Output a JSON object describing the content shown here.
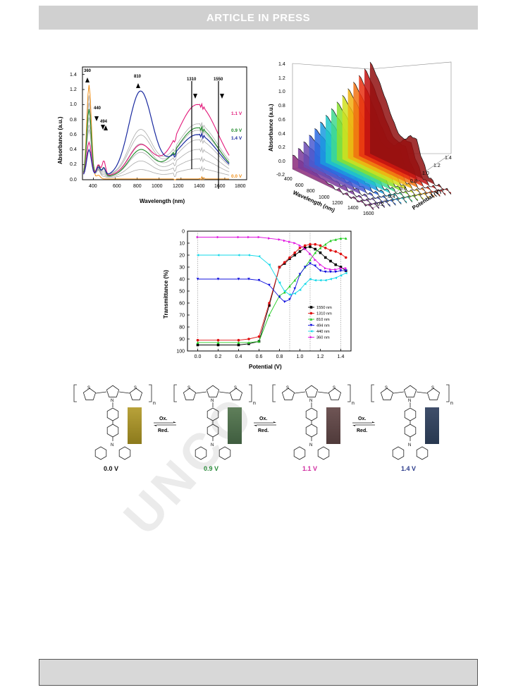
{
  "header": {
    "banner": "ARTICLE  IN  PRESS"
  },
  "watermark": "UNCO",
  "figure_a": {
    "xlabel": "Wavelength (nm)",
    "ylabel": "Absorbance (a.u.)",
    "xticks": [
      "400",
      "600",
      "800",
      "1000",
      "1200",
      "1400",
      "1600",
      "1800"
    ],
    "yticks": [
      "0.0",
      "0.2",
      "0.4",
      "0.6",
      "0.8",
      "1.0",
      "1.2",
      "1.4"
    ],
    "peak_labels": [
      "360",
      "440",
      "494",
      "810",
      "1310",
      "1550"
    ],
    "curve_labels": [
      {
        "text": "1.1 V",
        "color": "#e2197a"
      },
      {
        "text": "0.9 V",
        "color": "#1f8a2a"
      },
      {
        "text": "1.4 V",
        "color": "#1a2aa0"
      },
      {
        "text": "0.0 V",
        "color": "#f0901a"
      }
    ]
  },
  "figure_b": {
    "zlabel": "Absorbance (a.u.)",
    "xlabel": "Wavelength (nm)",
    "ylabel": "Potential (V)",
    "zticks": [
      "-0.2",
      "0.0",
      "0.2",
      "0.4",
      "0.6",
      "0.8",
      "1.0",
      "1.2",
      "1.4"
    ],
    "xticks": [
      "400",
      "600",
      "800",
      "1000",
      "1200",
      "1400",
      "1600"
    ],
    "yticks": [
      "0.2",
      "0.4",
      "0.6",
      "0.8",
      "1.0",
      "1.2",
      "1.4"
    ]
  },
  "chart_data": {
    "type": "line",
    "xlabel": "Potential (V)",
    "ylabel": "Transmittance (%)",
    "xlim": [
      -0.1,
      1.5
    ],
    "ylim": [
      100,
      0
    ],
    "xticks": [
      "0.0",
      "0.2",
      "0.4",
      "0.6",
      "0.8",
      "1.0",
      "1.2",
      "1.4"
    ],
    "yticks": [
      "0",
      "10",
      "20",
      "30",
      "40",
      "50",
      "60",
      "70",
      "80",
      "90",
      "100"
    ],
    "legend_position": "right",
    "reference_lines": [
      0.0,
      0.9,
      1.1,
      1.4
    ],
    "x": [
      0.0,
      0.2,
      0.4,
      0.5,
      0.6,
      0.7,
      0.8,
      0.85,
      0.9,
      0.95,
      1.0,
      1.05,
      1.1,
      1.15,
      1.2,
      1.25,
      1.3,
      1.35,
      1.4,
      1.45
    ],
    "series": [
      {
        "name": "1550 nm",
        "color": "#000000",
        "marker": "square",
        "values": [
          95,
          95,
          95,
          94,
          92,
          62,
          30,
          27,
          23,
          20,
          17,
          14,
          13,
          15,
          18,
          22,
          25,
          28,
          30,
          33
        ]
      },
      {
        "name": "1310 nm",
        "color": "#e01010",
        "marker": "circle",
        "values": [
          91,
          91,
          91,
          90,
          88,
          60,
          30,
          26,
          22,
          18,
          14,
          12,
          11,
          11,
          12,
          14,
          16,
          17,
          19,
          22
        ]
      },
      {
        "name": "810 nm",
        "color": "#22cc22",
        "marker": "triangle",
        "values": [
          93,
          93,
          93,
          93,
          92,
          70,
          54,
          51,
          46,
          41,
          36,
          30,
          24,
          18,
          14,
          11,
          8,
          7,
          6,
          6
        ]
      },
      {
        "name": "494 nm",
        "color": "#1010dd",
        "marker": "triangle-down",
        "values": [
          40,
          40,
          40,
          40,
          41,
          45,
          55,
          59,
          57,
          48,
          36,
          30,
          27,
          29,
          33,
          34,
          34,
          34,
          33,
          33
        ]
      },
      {
        "name": "440 nm",
        "color": "#10d8e8",
        "marker": "triangle-left",
        "values": [
          20,
          20,
          20,
          20,
          21,
          28,
          43,
          50,
          53,
          52,
          49,
          44,
          40,
          41,
          41,
          41,
          40,
          39,
          37,
          35
        ]
      },
      {
        "name": "360 nm",
        "color": "#e010e0",
        "marker": "triangle-right",
        "values": [
          5,
          5,
          5,
          5,
          5,
          6,
          7,
          8,
          9,
          10,
          12,
          15,
          19,
          24,
          28,
          31,
          32,
          32,
          31,
          31
        ]
      }
    ]
  },
  "scheme": {
    "arrow_labels": [
      {
        "top": "Ox.",
        "bottom": "Red."
      },
      {
        "top": "Ox.",
        "bottom": "Red."
      },
      {
        "top": "Ox.",
        "bottom": "Red."
      }
    ],
    "states": [
      {
        "label": "0.0 V",
        "label_color": "#111111",
        "swatch": "#b8a23a",
        "swatch_dark": "#8c7a1c"
      },
      {
        "label": "0.9 V",
        "label_color": "#2a8a3a",
        "swatch": "#5f7f5a",
        "swatch_dark": "#3f5d3f"
      },
      {
        "label": "1.1 V",
        "label_color": "#d02aa0",
        "swatch": "#6f5555",
        "swatch_dark": "#4f3a3a"
      },
      {
        "label": "1.4 V",
        "label_color": "#2a3a8a",
        "swatch": "#3f4e6a",
        "swatch_dark": "#283850"
      }
    ],
    "subscript": "n",
    "atom_N": "N",
    "atom_S": "S"
  }
}
